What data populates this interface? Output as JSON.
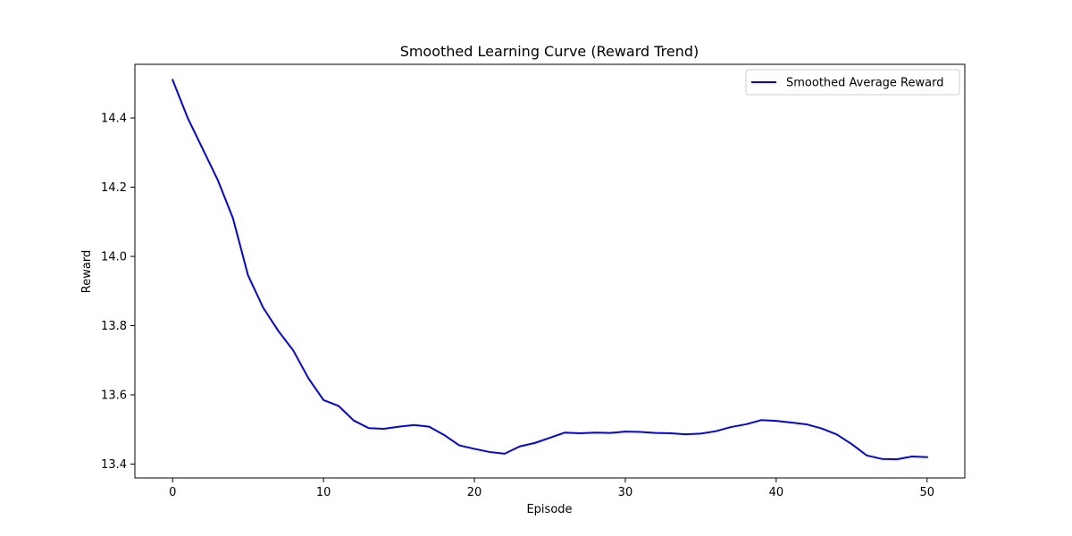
{
  "chart_data": {
    "type": "line",
    "title": "Smoothed Learning Curve (Reward Trend)",
    "xlabel": "Episode",
    "ylabel": "Reward",
    "xlim": [
      -2.5,
      52.5
    ],
    "ylim": [
      13.36,
      14.555
    ],
    "xticks": [
      0,
      10,
      20,
      30,
      40,
      50
    ],
    "yticks": [
      13.4,
      13.6,
      13.8,
      14.0,
      14.2,
      14.4
    ],
    "grid": false,
    "legend_position": "top-right",
    "series": [
      {
        "name": "Smoothed Average Reward",
        "color": "#0000ff",
        "x": [
          0,
          1,
          2,
          3,
          4,
          5,
          6,
          7,
          8,
          9,
          10,
          11,
          12,
          13,
          14,
          15,
          16,
          17,
          18,
          19,
          20,
          21,
          22,
          23,
          24,
          25,
          26,
          27,
          28,
          29,
          30,
          31,
          32,
          33,
          34,
          35,
          36,
          37,
          38,
          39,
          40,
          41,
          42,
          43,
          44,
          45,
          46,
          47,
          48,
          49,
          50
        ],
        "values": [
          14.51,
          14.4,
          14.31,
          14.22,
          14.11,
          13.945,
          13.852,
          13.785,
          13.728,
          13.648,
          13.585,
          13.568,
          13.526,
          13.504,
          13.502,
          13.508,
          13.513,
          13.508,
          13.484,
          13.454,
          13.444,
          13.435,
          13.43,
          13.451,
          13.461,
          13.476,
          13.491,
          13.489,
          13.491,
          13.49,
          13.494,
          13.493,
          13.49,
          13.489,
          13.486,
          13.488,
          13.495,
          13.507,
          13.515,
          13.527,
          13.525,
          13.52,
          13.515,
          13.503,
          13.486,
          13.458,
          13.425,
          13.415,
          13.414,
          13.422,
          13.42
        ]
      }
    ]
  }
}
